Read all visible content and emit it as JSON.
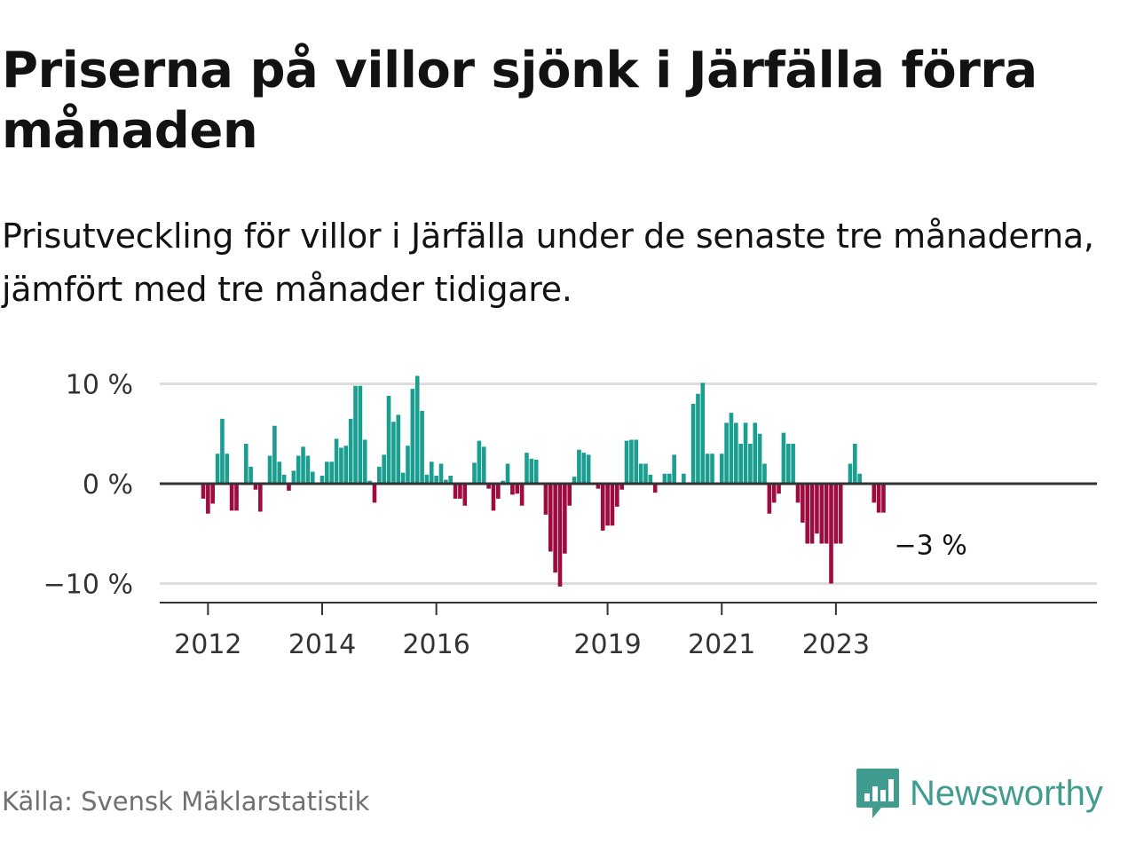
{
  "title": "Priserna på villor sjönk i Järfälla förra månaden",
  "subtitle": "Prisutveckling för villor i Järfälla under de senaste tre månaderna, jämfört med tre månader tidigare.",
  "source": "Källa: Svensk Mäklarstatistik",
  "logo": {
    "text": "Newsworthy",
    "icon": "newsworthy-bar-chart-icon"
  },
  "colors": {
    "positive": "#1a9e8f",
    "negative": "#9e0b3f",
    "gridline": "#dddddd",
    "zero_line": "#333333",
    "logo": "#3f9c8f"
  },
  "chart_data": {
    "type": "bar",
    "title": "Priserna på villor sjönk i Järfälla förra månaden",
    "subtitle": "Prisutveckling för villor i Järfälla under de senaste tre månaderna, jämfört med tre månader tidigare.",
    "xlabel": "",
    "ylabel": "",
    "unit": "%",
    "ylim": [
      -11.5,
      11.5
    ],
    "y_ticks": [
      {
        "value": 10,
        "label": "10 %"
      },
      {
        "value": 0,
        "label": "0 %"
      },
      {
        "value": -10,
        "label": "−10 %"
      }
    ],
    "x_ticks": [
      {
        "year": 2012,
        "label": "2012"
      },
      {
        "year": 2014,
        "label": "2014"
      },
      {
        "year": 2016,
        "label": "2016"
      },
      {
        "year": 2019,
        "label": "2019"
      },
      {
        "year": 2021,
        "label": "2021"
      },
      {
        "year": 2023,
        "label": "2023"
      }
    ],
    "start": "2011-12",
    "end_label": "−3 %",
    "values": [
      -1.5,
      -3.0,
      -2.0,
      3.0,
      6.5,
      3.0,
      -2.7,
      -2.7,
      0.0,
      4.0,
      1.7,
      -0.6,
      -2.8,
      0.0,
      2.8,
      5.8,
      2.2,
      0.9,
      -0.7,
      1.3,
      2.8,
      3.7,
      2.8,
      1.2,
      0.0,
      0.8,
      2.2,
      2.2,
      4.5,
      3.6,
      3.8,
      6.5,
      9.8,
      9.8,
      4.4,
      0.3,
      -1.9,
      1.7,
      2.9,
      8.8,
      6.2,
      6.9,
      1.1,
      3.8,
      9.5,
      10.8,
      7.3,
      0.9,
      2.2,
      0.8,
      2.0,
      0.4,
      0.8,
      -1.5,
      -1.5,
      -2.2,
      0.0,
      2.1,
      4.3,
      3.7,
      -0.5,
      -2.7,
      -1.5,
      0.3,
      2.0,
      -1.1,
      -1.0,
      -2.2,
      3.1,
      2.5,
      2.4,
      0.0,
      -3.1,
      -6.8,
      -8.9,
      -10.3,
      -7.0,
      -2.2,
      0.7,
      3.4,
      3.1,
      2.9,
      0.0,
      -0.5,
      -4.7,
      -4.2,
      -4.2,
      -2.3,
      -0.6,
      4.3,
      4.4,
      4.4,
      2.0,
      2.0,
      0.9,
      -0.9,
      0.0,
      1.0,
      1.0,
      2.9,
      0.0,
      1.0,
      0.0,
      8.0,
      9.0,
      10.1,
      3.0,
      3.0,
      0.0,
      3.0,
      6.1,
      7.1,
      6.1,
      4.0,
      6.1,
      4.0,
      6.1,
      5.0,
      2.0,
      -3.0,
      -1.9,
      -1.0,
      5.1,
      4.0,
      4.0,
      -1.9,
      -3.9,
      -6.0,
      -6.0,
      -5.0,
      -6.0,
      -6.0,
      -10.0,
      -6.0,
      -6.0,
      0.0,
      2.0,
      4.0,
      1.0,
      0.0,
      0.0,
      -1.9,
      -2.9,
      -2.9
    ]
  }
}
